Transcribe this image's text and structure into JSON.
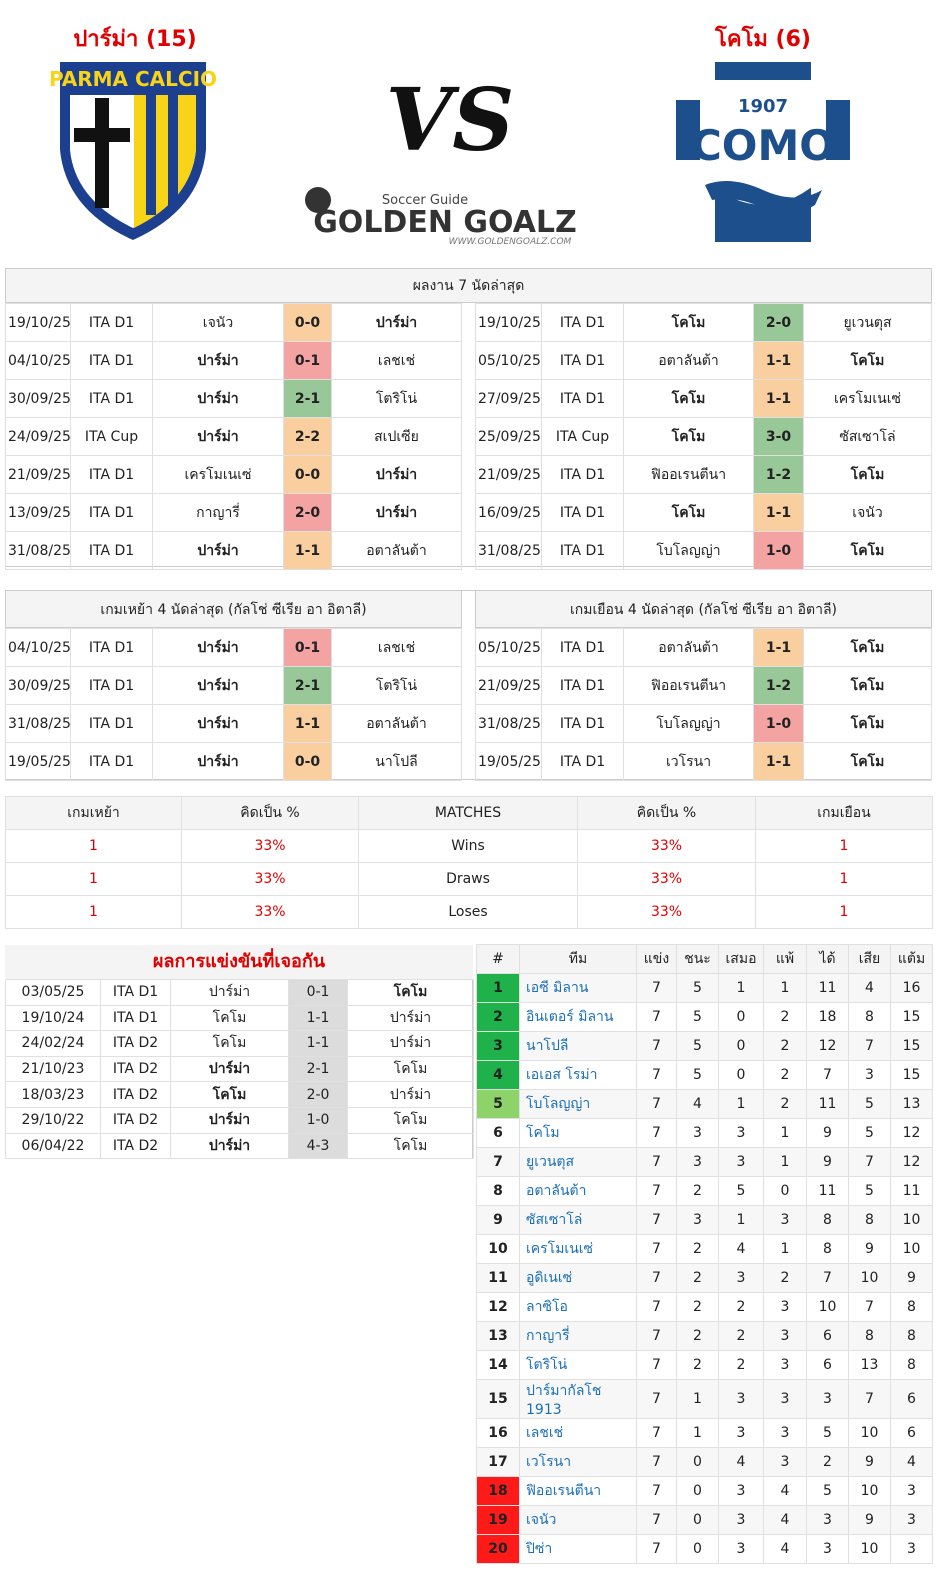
{
  "header": {
    "left_team": "ปาร์ม่า (15)",
    "right_team": "โคโม (6)",
    "vs": "VS",
    "parma_logo": "PARMA CALCIO",
    "como_year": "1907",
    "como_name": "COMO",
    "site_tagline": "Soccer Guide",
    "site_name": "GOLDEN GOALZ",
    "site_url": "WWW.GOLDENGOALZ.COM"
  },
  "recent_form": {
    "title": "ผลงาน 7 นัดล่าสุด",
    "left": [
      {
        "date": "19/10/25",
        "league": "ITA D1",
        "home": "เจนัว",
        "score": "0-0",
        "away": "ปาร์ม่า",
        "score_color": "#f9cfa0",
        "bold": "away"
      },
      {
        "date": "04/10/25",
        "league": "ITA D1",
        "home": "ปาร์ม่า",
        "score": "0-1",
        "away": "เลชเช่",
        "score_color": "#f4a3a3",
        "bold": "home"
      },
      {
        "date": "30/09/25",
        "league": "ITA D1",
        "home": "ปาร์ม่า",
        "score": "2-1",
        "away": "โตริโน่",
        "score_color": "#98c898",
        "bold": "home"
      },
      {
        "date": "24/09/25",
        "league": "ITA Cup",
        "home": "ปาร์ม่า",
        "score": "2-2",
        "away": "สเปเซีย",
        "score_color": "#f9cfa0",
        "bold": "home"
      },
      {
        "date": "21/09/25",
        "league": "ITA D1",
        "home": "เครโมเนเซ่",
        "score": "0-0",
        "away": "ปาร์ม่า",
        "score_color": "#f9cfa0",
        "bold": "away"
      },
      {
        "date": "13/09/25",
        "league": "ITA D1",
        "home": "กาญารี่",
        "score": "2-0",
        "away": "ปาร์ม่า",
        "score_color": "#f4a3a3",
        "bold": "away"
      },
      {
        "date": "31/08/25",
        "league": "ITA D1",
        "home": "ปาร์ม่า",
        "score": "1-1",
        "away": "อตาลันต้า",
        "score_color": "#f9cfa0",
        "bold": "home"
      }
    ],
    "right": [
      {
        "date": "19/10/25",
        "league": "ITA D1",
        "home": "โคโม",
        "score": "2-0",
        "away": "ยูเวนตุส",
        "score_color": "#98c898",
        "bold": "home"
      },
      {
        "date": "05/10/25",
        "league": "ITA D1",
        "home": "อตาลันต้า",
        "score": "1-1",
        "away": "โคโม",
        "score_color": "#f9cfa0",
        "bold": "away"
      },
      {
        "date": "27/09/25",
        "league": "ITA D1",
        "home": "โคโม",
        "score": "1-1",
        "away": "เครโมเนเซ่",
        "score_color": "#f9cfa0",
        "bold": "home"
      },
      {
        "date": "25/09/25",
        "league": "ITA Cup",
        "home": "โคโม",
        "score": "3-0",
        "away": "ซัสเซาโล่",
        "score_color": "#98c898",
        "bold": "home"
      },
      {
        "date": "21/09/25",
        "league": "ITA D1",
        "home": "ฟิออเรนตีนา",
        "score": "1-2",
        "away": "โคโม",
        "score_color": "#98c898",
        "bold": "away"
      },
      {
        "date": "16/09/25",
        "league": "ITA D1",
        "home": "โคโม",
        "score": "1-1",
        "away": "เจนัว",
        "score_color": "#f9cfa0",
        "bold": "home"
      },
      {
        "date": "31/08/25",
        "league": "ITA D1",
        "home": "โบโลญญ่า",
        "score": "1-0",
        "away": "โคโม",
        "score_color": "#f4a3a3",
        "bold": "away"
      }
    ]
  },
  "home_away": {
    "left_title": "เกมเหย้า 4 นัดล่าสุด (กัลโช่ ซีเรีย อา อิตาลี)",
    "right_title": "เกมเยือน 4 นัดล่าสุด (กัลโช่ ซีเรีย อา อิตาลี)",
    "left": [
      {
        "date": "04/10/25",
        "league": "ITA D1",
        "home": "ปาร์ม่า",
        "score": "0-1",
        "away": "เลชเช่",
        "score_color": "#f4a3a3",
        "bold": "home"
      },
      {
        "date": "30/09/25",
        "league": "ITA D1",
        "home": "ปาร์ม่า",
        "score": "2-1",
        "away": "โตริโน่",
        "score_color": "#98c898",
        "bold": "home"
      },
      {
        "date": "31/08/25",
        "league": "ITA D1",
        "home": "ปาร์ม่า",
        "score": "1-1",
        "away": "อตาลันต้า",
        "score_color": "#f9cfa0",
        "bold": "home"
      },
      {
        "date": "19/05/25",
        "league": "ITA D1",
        "home": "ปาร์ม่า",
        "score": "0-0",
        "away": "นาโปลี",
        "score_color": "#f9cfa0",
        "bold": "home"
      }
    ],
    "right": [
      {
        "date": "05/10/25",
        "league": "ITA D1",
        "home": "อตาลันต้า",
        "score": "1-1",
        "away": "โคโม",
        "score_color": "#f9cfa0",
        "bold": "away"
      },
      {
        "date": "21/09/25",
        "league": "ITA D1",
        "home": "ฟิออเรนตีนา",
        "score": "1-2",
        "away": "โคโม",
        "score_color": "#98c898",
        "bold": "away"
      },
      {
        "date": "31/08/25",
        "league": "ITA D1",
        "home": "โบโลญญ่า",
        "score": "1-0",
        "away": "โคโม",
        "score_color": "#f4a3a3",
        "bold": "away"
      },
      {
        "date": "19/05/25",
        "league": "ITA D1",
        "home": "เวโรนา",
        "score": "1-1",
        "away": "โคโม",
        "score_color": "#f9cfa0",
        "bold": "away"
      }
    ]
  },
  "summary": {
    "headers": [
      "เกมเหย้า",
      "คิดเป็น %",
      "MATCHES",
      "คิดเป็น %",
      "เกมเยือน"
    ],
    "rows": [
      [
        "1",
        "33%",
        "Wins",
        "33%",
        "1"
      ],
      [
        "1",
        "33%",
        "Draws",
        "33%",
        "1"
      ],
      [
        "1",
        "33%",
        "Loses",
        "33%",
        "1"
      ]
    ]
  },
  "h2h": {
    "title": "ผลการแข่งขันที่เจอกัน",
    "rows": [
      {
        "date": "03/05/25",
        "league": "ITA D1",
        "home": "ปาร์ม่า",
        "score": "0-1",
        "away": "โคโม",
        "bold": "away"
      },
      {
        "date": "19/10/24",
        "league": "ITA D1",
        "home": "โคโม",
        "score": "1-1",
        "away": "ปาร์ม่า"
      },
      {
        "date": "24/02/24",
        "league": "ITA D2",
        "home": "โคโม",
        "score": "1-1",
        "away": "ปาร์ม่า"
      },
      {
        "date": "21/10/23",
        "league": "ITA D2",
        "home": "ปาร์ม่า",
        "score": "2-1",
        "away": "โคโม",
        "bold": "home"
      },
      {
        "date": "18/03/23",
        "league": "ITA D2",
        "home": "โคโม",
        "score": "2-0",
        "away": "ปาร์ม่า",
        "bold": "home"
      },
      {
        "date": "29/10/22",
        "league": "ITA D2",
        "home": "ปาร์ม่า",
        "score": "1-0",
        "away": "โคโม",
        "bold": "home"
      },
      {
        "date": "06/04/22",
        "league": "ITA D2",
        "home": "ปาร์ม่า",
        "score": "4-3",
        "away": "โคโม",
        "bold": "home"
      }
    ]
  },
  "standings": {
    "headers": [
      "#",
      "ทีม",
      "แข่ง",
      "ชนะ",
      "เสมอ",
      "แพ้",
      "ได้",
      "เสีย",
      "แต้ม"
    ],
    "rows": [
      {
        "rank": 1,
        "team": "เอซี มิลาน",
        "played": 7,
        "won": 5,
        "drawn": 1,
        "lost": 1,
        "for": 11,
        "against": 4,
        "points": 16,
        "rank_color": "#1fb14a"
      },
      {
        "rank": 2,
        "team": "อินเตอร์ มิลาน",
        "played": 7,
        "won": 5,
        "drawn": 0,
        "lost": 2,
        "for": 18,
        "against": 8,
        "points": 15,
        "rank_color": "#1fb14a"
      },
      {
        "rank": 3,
        "team": "นาโปลี",
        "played": 7,
        "won": 5,
        "drawn": 0,
        "lost": 2,
        "for": 12,
        "against": 7,
        "points": 15,
        "rank_color": "#1fb14a"
      },
      {
        "rank": 4,
        "team": "เอเอส โรม่า",
        "played": 7,
        "won": 5,
        "drawn": 0,
        "lost": 2,
        "for": 7,
        "against": 3,
        "points": 15,
        "rank_color": "#1fb14a"
      },
      {
        "rank": 5,
        "team": "โบโลญญ่า",
        "played": 7,
        "won": 4,
        "drawn": 1,
        "lost": 2,
        "for": 11,
        "against": 5,
        "points": 13,
        "rank_color": "#8ed36a"
      },
      {
        "rank": 6,
        "team": "โคโม",
        "played": 7,
        "won": 3,
        "drawn": 3,
        "lost": 1,
        "for": 9,
        "against": 5,
        "points": 12
      },
      {
        "rank": 7,
        "team": "ยูเวนตุส",
        "played": 7,
        "won": 3,
        "drawn": 3,
        "lost": 1,
        "for": 9,
        "against": 7,
        "points": 12
      },
      {
        "rank": 8,
        "team": "อตาลันต้า",
        "played": 7,
        "won": 2,
        "drawn": 5,
        "lost": 0,
        "for": 11,
        "against": 5,
        "points": 11
      },
      {
        "rank": 9,
        "team": "ซัสเซาโล่",
        "played": 7,
        "won": 3,
        "drawn": 1,
        "lost": 3,
        "for": 8,
        "against": 8,
        "points": 10
      },
      {
        "rank": 10,
        "team": "เครโมเนเซ่",
        "played": 7,
        "won": 2,
        "drawn": 4,
        "lost": 1,
        "for": 8,
        "against": 9,
        "points": 10
      },
      {
        "rank": 11,
        "team": "อูดิเนเซ่",
        "played": 7,
        "won": 2,
        "drawn": 3,
        "lost": 2,
        "for": 7,
        "against": 10,
        "points": 9
      },
      {
        "rank": 12,
        "team": "ลาซิโอ",
        "played": 7,
        "won": 2,
        "drawn": 2,
        "lost": 3,
        "for": 10,
        "against": 7,
        "points": 8
      },
      {
        "rank": 13,
        "team": "กาญารี่",
        "played": 7,
        "won": 2,
        "drawn": 2,
        "lost": 3,
        "for": 6,
        "against": 8,
        "points": 8
      },
      {
        "rank": 14,
        "team": "โตริโน่",
        "played": 7,
        "won": 2,
        "drawn": 2,
        "lost": 3,
        "for": 6,
        "against": 13,
        "points": 8
      },
      {
        "rank": 15,
        "team": "ปาร์มากัลโช 1913",
        "played": 7,
        "won": 1,
        "drawn": 3,
        "lost": 3,
        "for": 3,
        "against": 7,
        "points": 6
      },
      {
        "rank": 16,
        "team": "เลชเช่",
        "played": 7,
        "won": 1,
        "drawn": 3,
        "lost": 3,
        "for": 5,
        "against": 10,
        "points": 6
      },
      {
        "rank": 17,
        "team": "เวโรนา",
        "played": 7,
        "won": 0,
        "drawn": 4,
        "lost": 3,
        "for": 2,
        "against": 9,
        "points": 4
      },
      {
        "rank": 18,
        "team": "ฟิออเรนตีนา",
        "played": 7,
        "won": 0,
        "drawn": 3,
        "lost": 4,
        "for": 5,
        "against": 10,
        "points": 3,
        "rank_color": "#ff1a1a"
      },
      {
        "rank": 19,
        "team": "เจนัว",
        "played": 7,
        "won": 0,
        "drawn": 3,
        "lost": 4,
        "for": 3,
        "against": 9,
        "points": 3,
        "rank_color": "#ff1a1a"
      },
      {
        "rank": 20,
        "team": "ปิซ่า",
        "played": 7,
        "won": 0,
        "drawn": 3,
        "lost": 4,
        "for": 3,
        "against": 10,
        "points": 3,
        "rank_color": "#ff1a1a"
      }
    ]
  }
}
